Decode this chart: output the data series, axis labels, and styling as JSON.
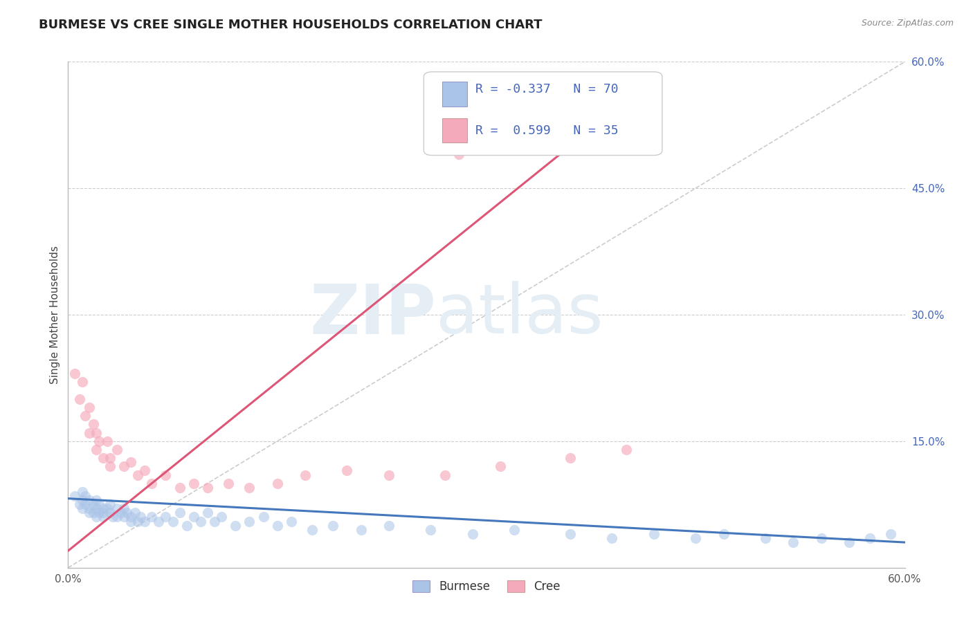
{
  "title": "BURMESE VS CREE SINGLE MOTHER HOUSEHOLDS CORRELATION CHART",
  "source_text": "Source: ZipAtlas.com",
  "ylabel": "Single Mother Households",
  "watermark_zip": "ZIP",
  "watermark_atlas": "atlas",
  "xlim": [
    0.0,
    0.6
  ],
  "ylim": [
    0.0,
    0.6
  ],
  "xtick_positions": [
    0.0,
    0.6
  ],
  "xticklabels": [
    "0.0%",
    "60.0%"
  ],
  "yticks_right": [
    0.15,
    0.3,
    0.45,
    0.6
  ],
  "ytick_labels_right": [
    "15.0%",
    "30.0%",
    "45.0%",
    "60.0%"
  ],
  "burmese_R": -0.337,
  "burmese_N": 70,
  "cree_R": 0.599,
  "cree_N": 35,
  "burmese_color": "#aac4e8",
  "cree_color": "#f5aabb",
  "burmese_line_color": "#4477bb",
  "cree_line_color": "#dd5577",
  "ref_line_color": "#cccccc",
  "title_color": "#222222",
  "title_fontsize": 13,
  "label_color": "#4466bb",
  "grid_color": "#cccccc",
  "background_color": "#ffffff",
  "burmese_x": [
    0.005,
    0.008,
    0.01,
    0.01,
    0.01,
    0.012,
    0.012,
    0.015,
    0.015,
    0.015,
    0.018,
    0.018,
    0.02,
    0.02,
    0.02,
    0.022,
    0.022,
    0.025,
    0.025,
    0.025,
    0.028,
    0.03,
    0.03,
    0.032,
    0.035,
    0.035,
    0.038,
    0.04,
    0.04,
    0.042,
    0.045,
    0.045,
    0.048,
    0.05,
    0.052,
    0.055,
    0.06,
    0.065,
    0.07,
    0.075,
    0.08,
    0.085,
    0.09,
    0.095,
    0.1,
    0.105,
    0.11,
    0.12,
    0.13,
    0.14,
    0.15,
    0.16,
    0.175,
    0.19,
    0.21,
    0.23,
    0.26,
    0.29,
    0.32,
    0.36,
    0.39,
    0.42,
    0.45,
    0.47,
    0.5,
    0.52,
    0.54,
    0.56,
    0.575,
    0.59
  ],
  "burmese_y": [
    0.085,
    0.075,
    0.09,
    0.08,
    0.07,
    0.085,
    0.075,
    0.08,
    0.07,
    0.065,
    0.075,
    0.065,
    0.08,
    0.07,
    0.06,
    0.075,
    0.065,
    0.07,
    0.06,
    0.065,
    0.07,
    0.065,
    0.075,
    0.06,
    0.07,
    0.06,
    0.065,
    0.06,
    0.07,
    0.065,
    0.06,
    0.055,
    0.065,
    0.055,
    0.06,
    0.055,
    0.06,
    0.055,
    0.06,
    0.055,
    0.065,
    0.05,
    0.06,
    0.055,
    0.065,
    0.055,
    0.06,
    0.05,
    0.055,
    0.06,
    0.05,
    0.055,
    0.045,
    0.05,
    0.045,
    0.05,
    0.045,
    0.04,
    0.045,
    0.04,
    0.035,
    0.04,
    0.035,
    0.04,
    0.035,
    0.03,
    0.035,
    0.03,
    0.035,
    0.04
  ],
  "cree_x": [
    0.005,
    0.008,
    0.01,
    0.012,
    0.015,
    0.015,
    0.018,
    0.02,
    0.02,
    0.022,
    0.025,
    0.028,
    0.03,
    0.03,
    0.035,
    0.04,
    0.045,
    0.05,
    0.055,
    0.06,
    0.07,
    0.08,
    0.09,
    0.1,
    0.115,
    0.13,
    0.15,
    0.17,
    0.2,
    0.23,
    0.27,
    0.31,
    0.36,
    0.4,
    0.28
  ],
  "cree_y": [
    0.23,
    0.2,
    0.22,
    0.18,
    0.16,
    0.19,
    0.17,
    0.14,
    0.16,
    0.15,
    0.13,
    0.15,
    0.13,
    0.12,
    0.14,
    0.12,
    0.125,
    0.11,
    0.115,
    0.1,
    0.11,
    0.095,
    0.1,
    0.095,
    0.1,
    0.095,
    0.1,
    0.11,
    0.115,
    0.11,
    0.11,
    0.12,
    0.13,
    0.14,
    0.49
  ]
}
